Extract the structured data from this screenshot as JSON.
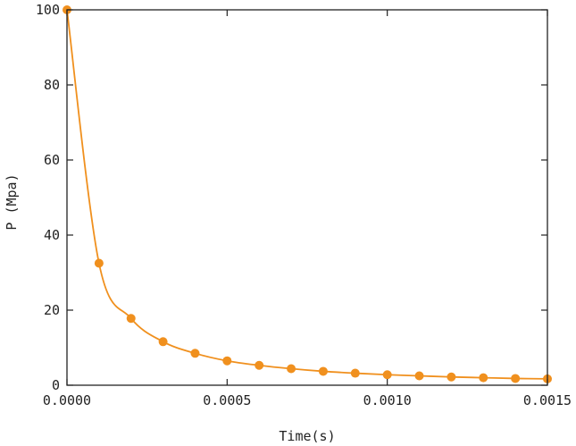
{
  "chart_data": {
    "type": "line",
    "xlabel": "Time(s)",
    "ylabel": "P (Mpa)",
    "xlim": [
      0,
      0.0015
    ],
    "ylim": [
      0,
      100
    ],
    "x_ticks": [
      0,
      0.0005,
      0.001,
      0.0015
    ],
    "x_tick_labels": [
      "0.0000",
      "0.0005",
      "0.0010",
      "0.0015"
    ],
    "y_ticks": [
      0,
      20,
      40,
      60,
      80,
      100
    ],
    "y_tick_labels": [
      "0",
      "20",
      "40",
      "60",
      "80",
      "100"
    ],
    "grid": false,
    "series": [
      {
        "color": "#f0901e",
        "markers": true,
        "x": [
          0,
          0.0001,
          0.0002,
          0.0003,
          0.0004,
          0.0005,
          0.0006,
          0.0007,
          0.0008,
          0.0009,
          0.001,
          0.0011,
          0.0012,
          0.0013,
          0.0014,
          0.0015
        ],
        "y": [
          100,
          32.5,
          17.8,
          11.6,
          8.5,
          6.5,
          5.3,
          4.4,
          3.7,
          3.2,
          2.8,
          2.5,
          2.2,
          2.0,
          1.8,
          1.7
        ]
      }
    ]
  }
}
